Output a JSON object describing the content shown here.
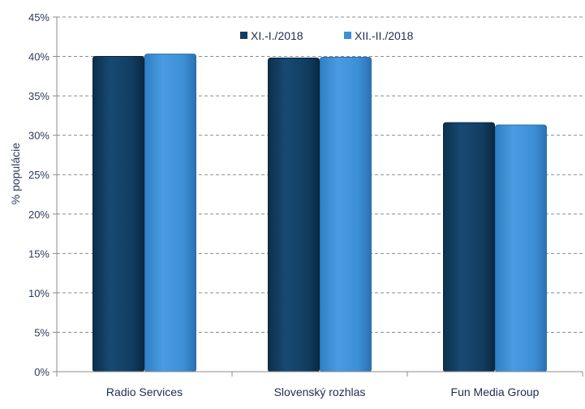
{
  "chart_data": {
    "type": "bar",
    "title": "",
    "xlabel": "",
    "ylabel": "% populácie",
    "categories": [
      "Radio Services",
      "Slovenský rozhlas",
      "Fun Media Group"
    ],
    "series": [
      {
        "name": "XI.-I./2018",
        "values": [
          40.0,
          39.8,
          31.6
        ],
        "color": "#123d61"
      },
      {
        "name": "XII.-II./2018",
        "values": [
          40.3,
          39.9,
          31.3
        ],
        "color": "#3d8fd6"
      }
    ],
    "ylim": [
      0,
      45
    ],
    "yticks": [
      0,
      5,
      10,
      15,
      20,
      25,
      30,
      35,
      40,
      45
    ],
    "ytick_labels": [
      "0%",
      "5%",
      "10%",
      "15%",
      "20%",
      "25%",
      "30%",
      "35%",
      "40%",
      "45%"
    ],
    "grid": true,
    "legend_position": "top-center"
  }
}
